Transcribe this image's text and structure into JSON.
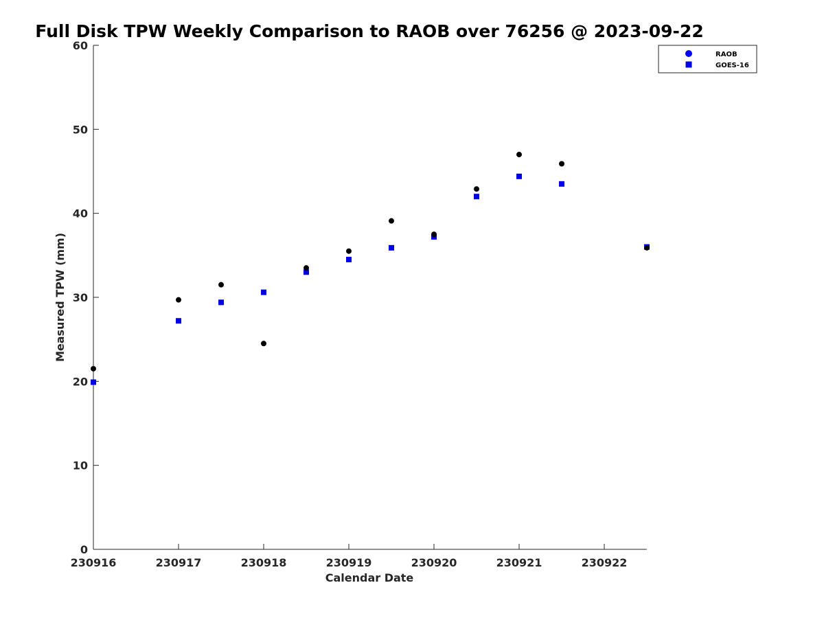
{
  "chart_data": {
    "type": "scatter",
    "title": "Full Disk TPW Weekly Comparison to RAOB over 76256 @ 2023-09-22",
    "xlabel": "Calendar Date",
    "ylabel": "Measured TPW (mm)",
    "x_tick_labels": [
      "230916",
      "230917",
      "230918",
      "230919",
      "230920",
      "230921",
      "230922"
    ],
    "y_ticks": [
      0,
      10,
      20,
      30,
      40,
      50,
      60
    ],
    "ylim": [
      0,
      60
    ],
    "x_unit": "days",
    "xlim": [
      "2023-09-16",
      "2023-09-22 12:00"
    ],
    "legend_position": "top-right",
    "grid": false,
    "series": [
      {
        "name": "RAOB",
        "marker": "circle",
        "color": "#000000",
        "legend_color": "#0000ff",
        "x": [
          "2023-09-16 00:00",
          "2023-09-17 00:00",
          "2023-09-17 12:00",
          "2023-09-18 00:00",
          "2023-09-18 12:00",
          "2023-09-19 00:00",
          "2023-09-19 12:00",
          "2023-09-20 00:00",
          "2023-09-20 12:00",
          "2023-09-21 00:00",
          "2023-09-21 12:00",
          "2023-09-22 12:00"
        ],
        "y": [
          21.5,
          29.7,
          31.5,
          24.5,
          33.5,
          35.5,
          39.1,
          37.5,
          42.9,
          47.0,
          45.9,
          35.9
        ]
      },
      {
        "name": "GOES-16",
        "marker": "square",
        "color": "#0000e6",
        "legend_color": "#0000e6",
        "x": [
          "2023-09-16 00:00",
          "2023-09-17 00:00",
          "2023-09-17 12:00",
          "2023-09-18 00:00",
          "2023-09-18 12:00",
          "2023-09-19 00:00",
          "2023-09-19 12:00",
          "2023-09-20 00:00",
          "2023-09-20 12:00",
          "2023-09-21 00:00",
          "2023-09-21 12:00",
          "2023-09-22 12:00"
        ],
        "y": [
          19.9,
          27.2,
          29.4,
          30.6,
          33.0,
          34.5,
          35.9,
          37.2,
          42.0,
          44.4,
          43.5,
          36.0
        ]
      }
    ]
  }
}
